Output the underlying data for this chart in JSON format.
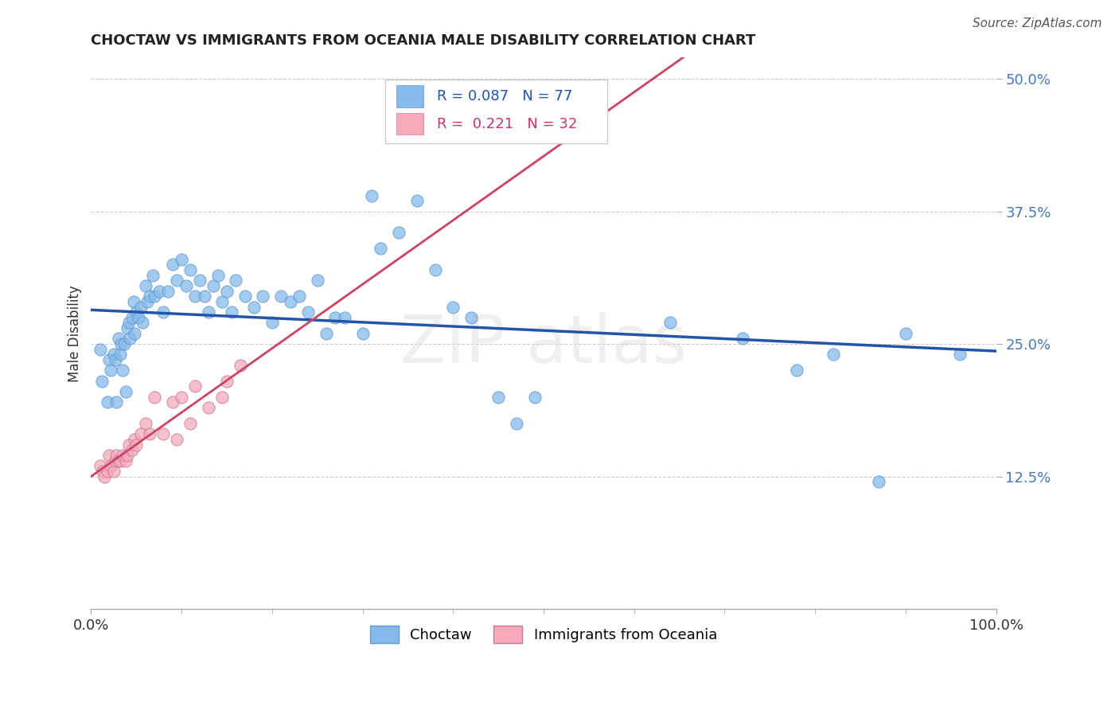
{
  "title": "CHOCTAW VS IMMIGRANTS FROM OCEANIA MALE DISABILITY CORRELATION CHART",
  "source": "Source: ZipAtlas.com",
  "ylabel": "Male Disability",
  "xlim": [
    0.0,
    1.0
  ],
  "ylim": [
    0.0,
    0.52
  ],
  "yticks": [
    0.125,
    0.25,
    0.375,
    0.5
  ],
  "ytick_labels": [
    "12.5%",
    "25.0%",
    "37.5%",
    "50.0%"
  ],
  "xtick_labels": [
    "0.0%",
    "100.0%"
  ],
  "choctaw_color": "#85BAEA",
  "choctaw_edge": "#6699CC",
  "oceania_color": "#F4AABB",
  "oceania_edge": "#CC7799",
  "choctaw_line_color": "#2255AA",
  "oceania_line_color": "#CC4466",
  "oceania_dash_color": "#CCAAAA",
  "choctaw_R": 0.087,
  "choctaw_N": 77,
  "oceania_R": 0.221,
  "oceania_N": 32,
  "background_color": "#FFFFFF",
  "grid_color": "#CCCCCC",
  "watermark": "ZIPatlas",
  "choctaw_x": [
    0.01,
    0.012,
    0.018,
    0.02,
    0.022,
    0.025,
    0.027,
    0.028,
    0.03,
    0.032,
    0.033,
    0.035,
    0.037,
    0.038,
    0.04,
    0.042,
    0.043,
    0.045,
    0.047,
    0.048,
    0.05,
    0.052,
    0.055,
    0.057,
    0.06,
    0.062,
    0.065,
    0.068,
    0.07,
    0.075,
    0.08,
    0.085,
    0.09,
    0.095,
    0.1,
    0.105,
    0.11,
    0.115,
    0.12,
    0.125,
    0.13,
    0.135,
    0.14,
    0.145,
    0.15,
    0.155,
    0.16,
    0.17,
    0.18,
    0.19,
    0.2,
    0.21,
    0.22,
    0.23,
    0.24,
    0.25,
    0.26,
    0.27,
    0.28,
    0.3,
    0.31,
    0.32,
    0.34,
    0.36,
    0.38,
    0.4,
    0.42,
    0.45,
    0.47,
    0.49,
    0.64,
    0.72,
    0.78,
    0.82,
    0.87,
    0.9,
    0.96
  ],
  "choctaw_y": [
    0.245,
    0.215,
    0.195,
    0.235,
    0.225,
    0.24,
    0.235,
    0.195,
    0.255,
    0.24,
    0.25,
    0.225,
    0.25,
    0.205,
    0.265,
    0.27,
    0.255,
    0.275,
    0.29,
    0.26,
    0.28,
    0.275,
    0.285,
    0.27,
    0.305,
    0.29,
    0.295,
    0.315,
    0.295,
    0.3,
    0.28,
    0.3,
    0.325,
    0.31,
    0.33,
    0.305,
    0.32,
    0.295,
    0.31,
    0.295,
    0.28,
    0.305,
    0.315,
    0.29,
    0.3,
    0.28,
    0.31,
    0.295,
    0.285,
    0.295,
    0.27,
    0.295,
    0.29,
    0.295,
    0.28,
    0.31,
    0.26,
    0.275,
    0.275,
    0.26,
    0.39,
    0.34,
    0.355,
    0.385,
    0.32,
    0.285,
    0.275,
    0.2,
    0.175,
    0.2,
    0.27,
    0.255,
    0.225,
    0.24,
    0.12,
    0.26,
    0.24
  ],
  "oceania_x": [
    0.01,
    0.013,
    0.015,
    0.018,
    0.02,
    0.022,
    0.025,
    0.027,
    0.028,
    0.03,
    0.032,
    0.035,
    0.038,
    0.04,
    0.042,
    0.045,
    0.048,
    0.05,
    0.055,
    0.06,
    0.065,
    0.07,
    0.08,
    0.09,
    0.095,
    0.1,
    0.11,
    0.115,
    0.13,
    0.145,
    0.15,
    0.165
  ],
  "oceania_y": [
    0.135,
    0.13,
    0.125,
    0.13,
    0.145,
    0.135,
    0.13,
    0.14,
    0.145,
    0.14,
    0.14,
    0.145,
    0.14,
    0.145,
    0.155,
    0.15,
    0.16,
    0.155,
    0.165,
    0.175,
    0.165,
    0.2,
    0.165,
    0.195,
    0.16,
    0.2,
    0.175,
    0.21,
    0.19,
    0.2,
    0.215,
    0.23
  ]
}
